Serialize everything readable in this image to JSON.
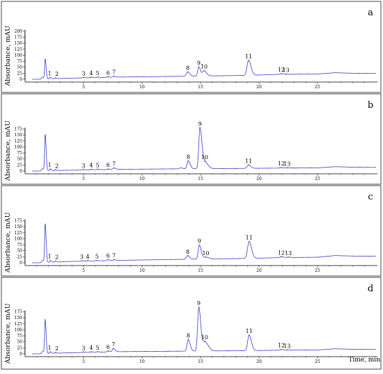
{
  "chart_data": [
    {
      "type": "line",
      "panel": "a",
      "ylabel": "Absorbance, mAU",
      "ylim": [
        0,
        200
      ],
      "yticks": [
        0,
        25,
        50,
        75,
        100,
        125,
        150,
        175,
        200
      ],
      "xlim": [
        0,
        30
      ],
      "xticks": [
        5,
        10,
        15,
        20,
        25
      ],
      "xlabel": "",
      "baseline": [
        [
          1.3,
          0.5
        ],
        [
          2.0,
          1.0
        ],
        [
          3.5,
          4.0
        ],
        [
          8.0,
          9.0
        ],
        [
          13.0,
          12.0
        ],
        [
          19.0,
          16.0
        ],
        [
          21.5,
          20.0
        ],
        [
          25.0,
          22.0
        ],
        [
          26.5,
          27.0
        ],
        [
          28.0,
          25.0
        ],
        [
          30.0,
          24.0
        ]
      ],
      "peaks": [
        {
          "label": "",
          "x": 1.5,
          "height": 8,
          "width": 0.07
        },
        {
          "label": "",
          "x": 1.72,
          "height": 82,
          "width": 0.05
        },
        {
          "label": "1",
          "x": 2.15,
          "height": 6,
          "width": 0.06
        },
        {
          "label": "2",
          "x": 2.6,
          "height": 3,
          "width": 0.07
        },
        {
          "label": "3",
          "x": 5.0,
          "height": 2,
          "width": 0.08
        },
        {
          "label": "4",
          "x": 5.65,
          "height": 2,
          "width": 0.08
        },
        {
          "label": "5",
          "x": 6.2,
          "height": 2,
          "width": 0.08
        },
        {
          "label": "6",
          "x": 7.1,
          "height": 2,
          "width": 0.08
        },
        {
          "label": "7",
          "x": 7.6,
          "height": 4,
          "width": 0.09
        },
        {
          "label": "8",
          "x": 13.9,
          "height": 18,
          "width": 0.11
        },
        {
          "label": "9",
          "x": 14.85,
          "height": 38,
          "width": 0.09
        },
        {
          "label": "10",
          "x": 15.3,
          "height": 22,
          "width": 0.13
        },
        {
          "label": "11",
          "x": 19.1,
          "height": 62,
          "width": 0.13
        },
        {
          "label": "12",
          "x": 21.9,
          "height": 3,
          "width": 0.12
        },
        {
          "label": "13",
          "x": 22.3,
          "height": 1,
          "width": 0.12
        }
      ]
    },
    {
      "type": "line",
      "panel": "b",
      "ylabel": "Absorbance, mAU",
      "ylim": [
        0,
        200
      ],
      "yticks": [
        0,
        25,
        50,
        75,
        100,
        125,
        150,
        175
      ],
      "xlim": [
        0,
        30
      ],
      "xticks": [
        5,
        10,
        15,
        20,
        25
      ],
      "xlabel": "",
      "baseline": [
        [
          1.3,
          0.5
        ],
        [
          2.0,
          1.0
        ],
        [
          3.5,
          3.0
        ],
        [
          8.0,
          7.0
        ],
        [
          13.0,
          9.0
        ],
        [
          19.0,
          11.0
        ],
        [
          21.5,
          12.0
        ],
        [
          25.0,
          13.0
        ],
        [
          26.5,
          18.0
        ],
        [
          28.0,
          16.0
        ],
        [
          30.0,
          15.0
        ]
      ],
      "peaks": [
        {
          "label": "",
          "x": 1.5,
          "height": 9,
          "width": 0.07
        },
        {
          "label": "",
          "x": 1.72,
          "height": 150,
          "width": 0.05
        },
        {
          "label": "1",
          "x": 2.15,
          "height": 7,
          "width": 0.06
        },
        {
          "label": "2",
          "x": 2.6,
          "height": 3,
          "width": 0.07
        },
        {
          "label": "3",
          "x": 5.0,
          "height": 2,
          "width": 0.08
        },
        {
          "label": "4",
          "x": 5.65,
          "height": 2,
          "width": 0.08
        },
        {
          "label": "5",
          "x": 6.2,
          "height": 2,
          "width": 0.08
        },
        {
          "label": "6",
          "x": 7.1,
          "height": 2,
          "width": 0.08
        },
        {
          "label": "7",
          "x": 7.6,
          "height": 6,
          "width": 0.09
        },
        {
          "label": "",
          "x": 13.3,
          "height": 4,
          "width": 0.1
        },
        {
          "label": "8",
          "x": 13.95,
          "height": 33,
          "width": 0.1
        },
        {
          "label": "9",
          "x": 14.95,
          "height": 170,
          "width": 0.1
        },
        {
          "label": "10",
          "x": 15.35,
          "height": 30,
          "width": 0.16
        },
        {
          "label": "11",
          "x": 19.1,
          "height": 14,
          "width": 0.12
        },
        {
          "label": "12",
          "x": 21.9,
          "height": 2,
          "width": 0.12
        },
        {
          "label": "13",
          "x": 22.4,
          "height": 1,
          "width": 0.12
        }
      ]
    },
    {
      "type": "line",
      "panel": "c",
      "ylabel": "Absorbance, mAU",
      "ylim": [
        0,
        200
      ],
      "yticks": [
        0,
        25,
        50,
        75,
        100,
        125,
        150,
        175
      ],
      "xlim": [
        0,
        30
      ],
      "xticks": [
        5,
        10,
        15,
        20,
        25
      ],
      "xlabel": "",
      "baseline": [
        [
          1.3,
          0.5
        ],
        [
          2.0,
          1.0
        ],
        [
          3.5,
          5.0
        ],
        [
          8.0,
          10.0
        ],
        [
          13.0,
          14.0
        ],
        [
          19.0,
          18.0
        ],
        [
          21.5,
          21.0
        ],
        [
          25.0,
          23.0
        ],
        [
          26.5,
          30.0
        ],
        [
          28.0,
          28.0
        ],
        [
          30.0,
          27.0
        ]
      ],
      "peaks": [
        {
          "label": "",
          "x": 1.5,
          "height": 9,
          "width": 0.07
        },
        {
          "label": "",
          "x": 1.72,
          "height": 160,
          "width": 0.05
        },
        {
          "label": "1",
          "x": 2.15,
          "height": 8,
          "width": 0.06
        },
        {
          "label": "2",
          "x": 2.6,
          "height": 4,
          "width": 0.07
        },
        {
          "label": "3",
          "x": 4.85,
          "height": 2,
          "width": 0.08
        },
        {
          "label": "4",
          "x": 5.35,
          "height": 2,
          "width": 0.08
        },
        {
          "label": "5",
          "x": 6.15,
          "height": 2,
          "width": 0.08
        },
        {
          "label": "6",
          "x": 7.1,
          "height": 4,
          "width": 0.08
        },
        {
          "label": "7",
          "x": 7.6,
          "height": 3,
          "width": 0.09
        },
        {
          "label": "8",
          "x": 13.9,
          "height": 15,
          "width": 0.11
        },
        {
          "label": "9",
          "x": 14.9,
          "height": 58,
          "width": 0.1
        },
        {
          "label": "10",
          "x": 15.45,
          "height": 8,
          "width": 0.16
        },
        {
          "label": "11",
          "x": 19.15,
          "height": 70,
          "width": 0.13
        },
        {
          "label": "12",
          "x": 21.9,
          "height": 4,
          "width": 0.12
        },
        {
          "label": "13",
          "x": 22.5,
          "height": 2,
          "width": 0.12
        }
      ]
    },
    {
      "type": "line",
      "panel": "d",
      "ylabel": "Absorbance, mAU",
      "ylim": [
        0,
        200
      ],
      "yticks": [
        0,
        25,
        50,
        75,
        100,
        125,
        150,
        175
      ],
      "xlim": [
        0,
        30
      ],
      "xticks": [
        5,
        10,
        15,
        20,
        25
      ],
      "xlabel": "Time, min",
      "baseline": [
        [
          1.3,
          0.5
        ],
        [
          2.0,
          1.0
        ],
        [
          3.5,
          4.0
        ],
        [
          8.0,
          9.0
        ],
        [
          13.0,
          11.0
        ],
        [
          19.0,
          13.0
        ],
        [
          21.5,
          15.0
        ],
        [
          25.0,
          16.0
        ],
        [
          26.5,
          21.0
        ],
        [
          28.0,
          19.0
        ],
        [
          30.0,
          18.0
        ]
      ],
      "peaks": [
        {
          "label": "",
          "x": 1.5,
          "height": 9,
          "width": 0.07
        },
        {
          "label": "",
          "x": 1.72,
          "height": 140,
          "width": 0.05
        },
        {
          "label": "1",
          "x": 2.15,
          "height": 7,
          "width": 0.06
        },
        {
          "label": "2",
          "x": 2.6,
          "height": 3,
          "width": 0.07
        },
        {
          "label": "3",
          "x": 5.0,
          "height": 2,
          "width": 0.08
        },
        {
          "label": "4",
          "x": 5.65,
          "height": 2,
          "width": 0.08
        },
        {
          "label": "5",
          "x": 6.2,
          "height": 2,
          "width": 0.08
        },
        {
          "label": "6",
          "x": 7.1,
          "height": 4,
          "width": 0.08
        },
        {
          "label": "7",
          "x": 7.55,
          "height": 14,
          "width": 0.09
        },
        {
          "label": "8",
          "x": 13.95,
          "height": 48,
          "width": 0.1
        },
        {
          "label": "9",
          "x": 14.85,
          "height": 182,
          "width": 0.1
        },
        {
          "label": "10",
          "x": 15.35,
          "height": 40,
          "width": 0.18
        },
        {
          "label": "11",
          "x": 19.15,
          "height": 65,
          "width": 0.12
        },
        {
          "label": "12",
          "x": 21.9,
          "height": 3,
          "width": 0.12
        },
        {
          "label": "13",
          "x": 22.4,
          "height": 1,
          "width": 0.12
        }
      ]
    }
  ],
  "style": {
    "trace_color": "#3a3ac8",
    "frame_color": "#444444"
  }
}
